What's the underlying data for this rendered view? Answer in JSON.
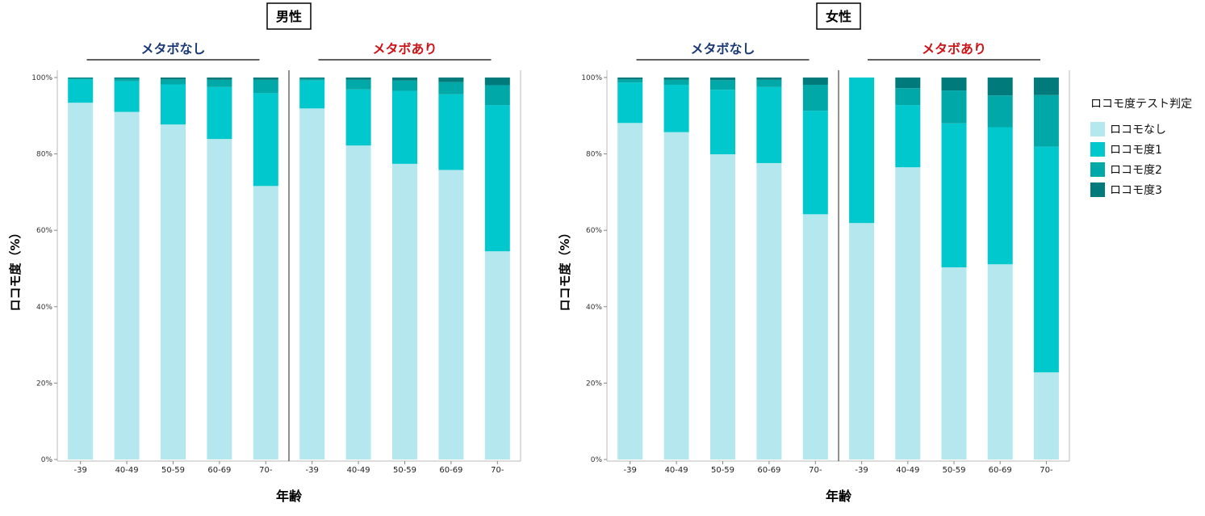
{
  "colors": {
    "roco_none": "#b4e8ee",
    "roco_1": "#00c8cc",
    "roco_2": "#00a8a8",
    "roco_3": "#007a7a",
    "no_metabo_title": "#1c3a78",
    "metabo_title": "#cc1418"
  },
  "legend": {
    "title": "ロコモ度テスト判定",
    "items": [
      "ロコモなし",
      "ロコモ度1",
      "ロコモ度2",
      "ロコモ度3"
    ]
  },
  "chart_data": [
    {
      "type": "bar",
      "stacked": true,
      "title": "男性",
      "xlabel": "年齢",
      "ylabel": "ロコモ度（%）",
      "ylim": [
        0,
        100
      ],
      "ytick_labels": [
        "0%",
        "20%",
        "40%",
        "60%",
        "80%",
        "100%"
      ],
      "groups": [
        {
          "title": "メタボなし",
          "categories": [
            "-39",
            "40-49",
            "50-59",
            "60-69",
            "70-"
          ],
          "series": [
            {
              "name": "ロコモなし",
              "values": [
                93.4,
                91.0,
                87.7,
                83.9,
                71.6
              ]
            },
            {
              "name": "ロコモ度1",
              "values": [
                6.1,
                8.0,
                10.5,
                13.6,
                24.3
              ]
            },
            {
              "name": "ロコモ度2",
              "values": [
                0.3,
                0.7,
                1.3,
                1.9,
                3.5
              ]
            },
            {
              "name": "ロコモ度3",
              "values": [
                0.2,
                0.3,
                0.5,
                0.6,
                0.6
              ]
            }
          ]
        },
        {
          "title": "メタボあり",
          "categories": [
            "-39",
            "40-49",
            "50-59",
            "60-69",
            "70-"
          ],
          "series": [
            {
              "name": "ロコモなし",
              "values": [
                91.9,
                82.2,
                77.4,
                75.8,
                54.5
              ]
            },
            {
              "name": "ロコモ度1",
              "values": [
                7.3,
                14.7,
                19.1,
                19.8,
                38.3
              ]
            },
            {
              "name": "ロコモ度2",
              "values": [
                0.5,
                2.5,
                2.7,
                3.2,
                5.2
              ]
            },
            {
              "name": "ロコモ度3",
              "values": [
                0.3,
                0.6,
                0.8,
                1.2,
                2.0
              ]
            }
          ]
        }
      ]
    },
    {
      "type": "bar",
      "stacked": true,
      "title": "女性",
      "xlabel": "年齢",
      "ylabel": "ロコモ度（%）",
      "ylim": [
        0,
        100
      ],
      "ytick_labels": [
        "0%",
        "20%",
        "40%",
        "60%",
        "80%",
        "100%"
      ],
      "groups": [
        {
          "title": "メタボなし",
          "categories": [
            "-39",
            "40-49",
            "50-59",
            "60-69",
            "70-"
          ],
          "series": [
            {
              "name": "ロコモなし",
              "values": [
                88.1,
                85.7,
                79.9,
                77.6,
                64.2
              ]
            },
            {
              "name": "ロコモ度1",
              "values": [
                10.6,
                12.4,
                16.9,
                19.9,
                27.1
              ]
            },
            {
              "name": "ロコモ度2",
              "values": [
                0.8,
                1.3,
                2.5,
                1.9,
                6.8
              ]
            },
            {
              "name": "ロコモ度3",
              "values": [
                0.5,
                0.6,
                0.7,
                0.6,
                1.9
              ]
            }
          ]
        },
        {
          "title": "メタボあり",
          "categories": [
            "-39",
            "40-49",
            "50-59",
            "60-69",
            "70-"
          ],
          "series": [
            {
              "name": "ロコモなし",
              "values": [
                61.9,
                76.5,
                50.3,
                51.1,
                22.8
              ]
            },
            {
              "name": "ロコモ度1",
              "values": [
                38.1,
                16.3,
                37.7,
                35.9,
                59.1
              ]
            },
            {
              "name": "ロコモ度2",
              "values": [
                0,
                4.4,
                8.6,
                8.3,
                13.5
              ]
            },
            {
              "name": "ロコモ度3",
              "values": [
                0,
                2.8,
                3.4,
                4.7,
                4.6
              ]
            }
          ]
        }
      ]
    }
  ]
}
